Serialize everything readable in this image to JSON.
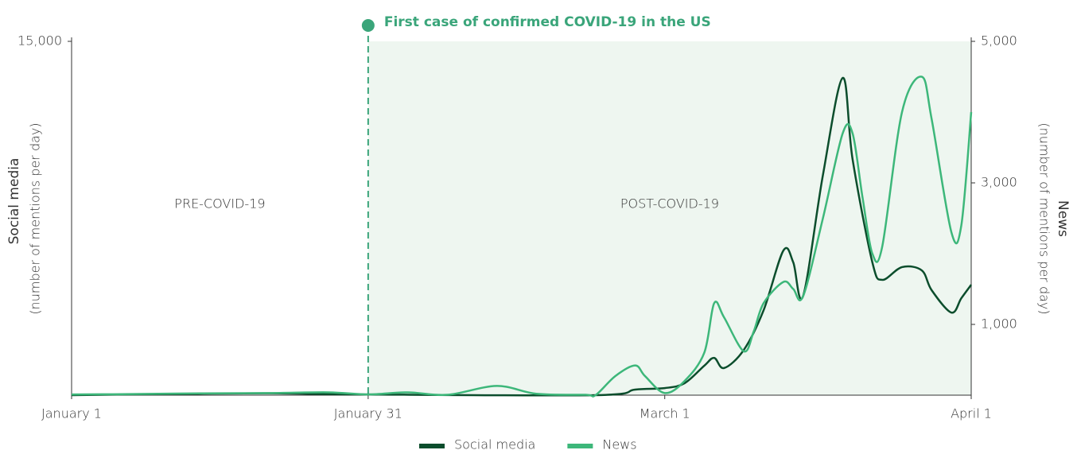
{
  "chart_data": {
    "type": "line",
    "annotation": {
      "text": "First case of confirmed COVID-19 in the US",
      "x": 30
    },
    "regions": [
      {
        "label": "PRE-COVID-19",
        "from": 0,
        "to": 30
      },
      {
        "label": "POST-COVID-19",
        "from": 30,
        "to": 91
      }
    ],
    "y_label": "Social media",
    "y_sublabel": "(number of mentions per day)",
    "y2_label": "News",
    "y2_sublabel": "(number of mentions per day)",
    "xlim": [
      0,
      91
    ],
    "xticks": [
      {
        "value": 0,
        "label": "January 1"
      },
      {
        "value": 30,
        "label": "January 31"
      },
      {
        "value": 60,
        "label": "March 1"
      },
      {
        "value": 91,
        "label": "April 1"
      }
    ],
    "ylim": [
      0,
      15000
    ],
    "yticks": [
      {
        "value": 15000,
        "label": "15,000"
      }
    ],
    "y2lim": [
      0,
      5000
    ],
    "y2ticks": [
      {
        "value": 1000,
        "label": "1,000"
      },
      {
        "value": 3000,
        "label": "3,000"
      },
      {
        "value": 5000,
        "label": "5,000"
      }
    ],
    "series": [
      {
        "name": "Social media",
        "color": "#0b4d2c",
        "axis": "y",
        "x": [
          0,
          10,
          20,
          30,
          53,
          57,
          60,
          62,
          64,
          65,
          66,
          68,
          70,
          72,
          73,
          74,
          76,
          78,
          79,
          81,
          82,
          84,
          86,
          87,
          89,
          90,
          91
        ],
        "values": [
          0,
          50,
          80,
          30,
          0,
          236,
          300,
          505,
          1250,
          1580,
          1150,
          1920,
          3600,
          6130,
          5630,
          4210,
          9330,
          13450,
          10000,
          5630,
          4890,
          5430,
          5290,
          4450,
          3500,
          4110,
          4680
        ]
      },
      {
        "name": "News",
        "color": "#3db77a",
        "axis": "y2",
        "x": [
          0,
          6,
          13,
          20,
          26,
          30,
          34,
          38,
          43,
          47,
          52,
          53,
          55,
          57,
          58,
          60,
          62,
          64,
          65,
          66,
          68,
          69,
          70,
          72,
          73,
          74,
          76,
          78,
          79,
          80,
          81,
          82,
          84,
          86,
          87,
          89,
          90,
          91
        ],
        "values": [
          10,
          15,
          25,
          30,
          40,
          10,
          40,
          5,
          130,
          20,
          5,
          0,
          270,
          420,
          270,
          30,
          200,
          600,
          1300,
          1100,
          620,
          900,
          1300,
          1600,
          1500,
          1400,
          2500,
          3700,
          3700,
          2800,
          2000,
          2100,
          4000,
          4500,
          3900,
          2300,
          2400,
          4000
        ]
      }
    ]
  }
}
